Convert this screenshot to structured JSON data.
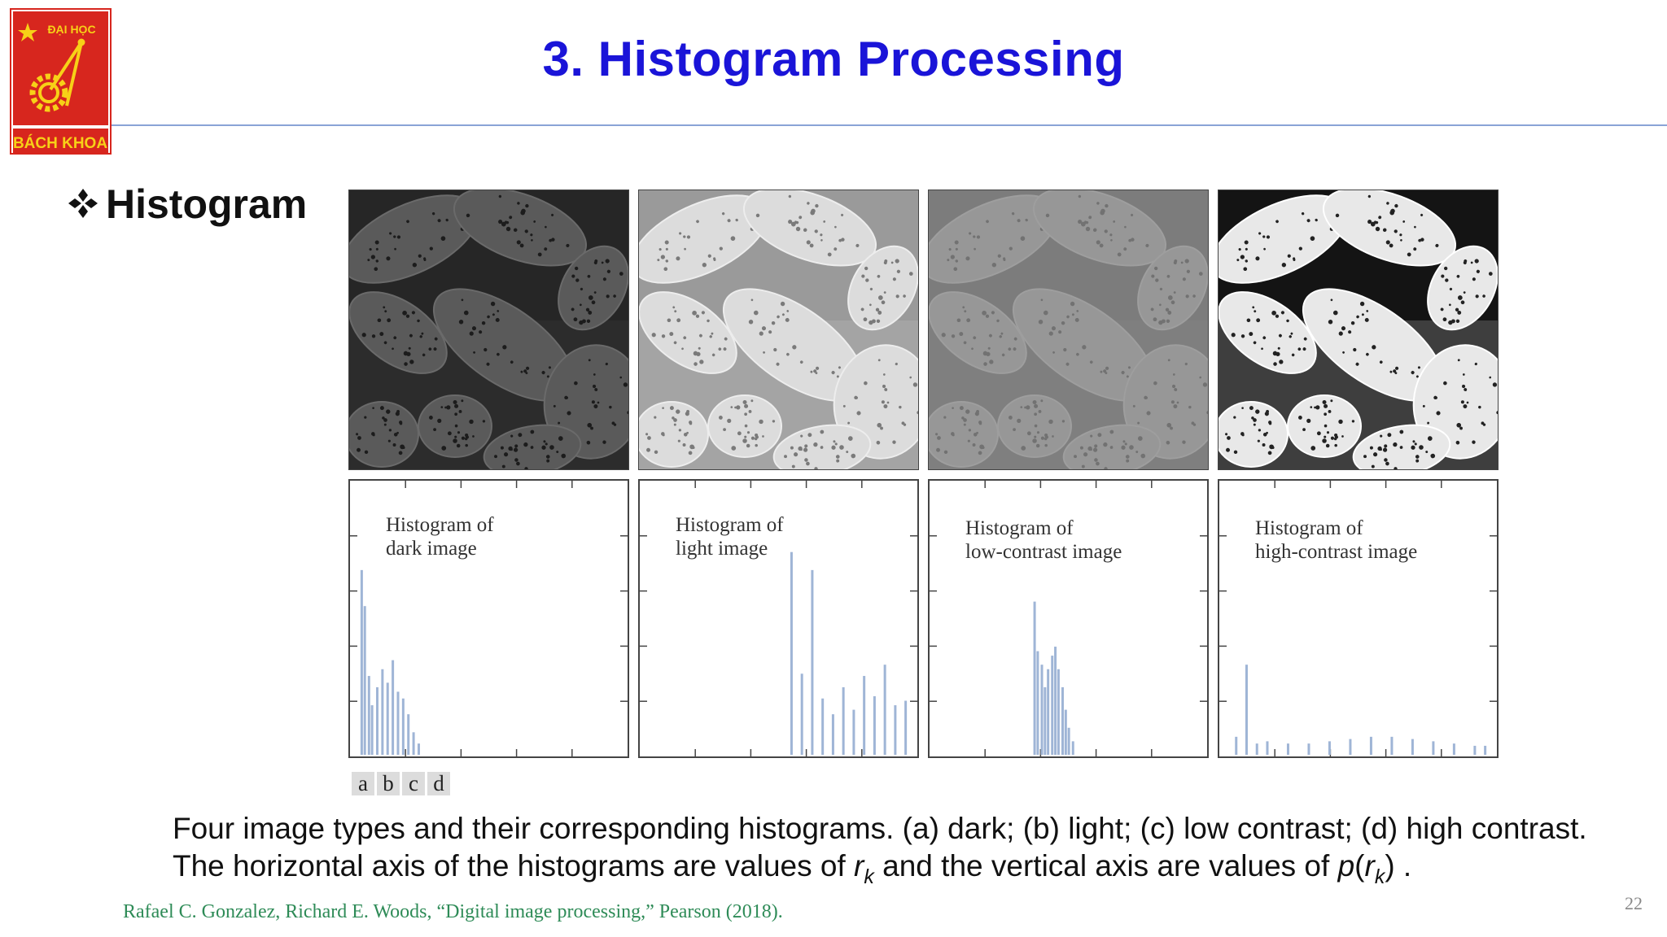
{
  "slide": {
    "title": "3. Histogram Processing",
    "bullet": "Histogram",
    "page_number": "22"
  },
  "logo": {
    "top_text": "ĐẠI HỌC",
    "bottom_text": "BÁCH KHOA",
    "colors": {
      "background": "#d7261e",
      "emblem": "#f7d117",
      "frame": "#d7261e"
    }
  },
  "figure": {
    "photos": [
      {
        "panel": "a",
        "description_tone": "dark",
        "tones": {
          "bg": "#262626",
          "mid": "#3a3a3a",
          "grain": "#5a5a5a",
          "dots": "#1c1c1c",
          "edge": "#6a6a6a"
        }
      },
      {
        "panel": "b",
        "description_tone": "light",
        "tones": {
          "bg": "#9a9a9a",
          "mid": "#b8b8b8",
          "grain": "#dcdcdc",
          "dots": "#7a7a7a",
          "edge": "#ededed"
        }
      },
      {
        "panel": "c",
        "description_tone": "low contrast",
        "tones": {
          "bg": "#7c7c7c",
          "mid": "#888888",
          "grain": "#979797",
          "dots": "#727272",
          "edge": "#9e9e9e"
        }
      },
      {
        "panel": "d",
        "description_tone": "high contrast",
        "tones": {
          "bg": "#141414",
          "mid": "#8c8c8c",
          "grain": "#e8e8e8",
          "dots": "#222222",
          "edge": "#ffffff"
        }
      }
    ],
    "histograms": [
      {
        "title_line1": "Histogram of",
        "title_line2": "dark image"
      },
      {
        "title_line1": "Histogram of",
        "title_line2": "light image"
      },
      {
        "title_line1": "Histogram of",
        "title_line2": "low-contrast image"
      },
      {
        "title_line1": "Histogram of",
        "title_line2": "high-contrast image"
      }
    ],
    "panel_letters": [
      "a",
      "b",
      "c",
      "d"
    ],
    "bar_color": "#9fb5d6"
  },
  "chart_data": [
    {
      "type": "bar",
      "title": "Histogram of dark image",
      "x": [
        5,
        8,
        12,
        15,
        20,
        25,
        30,
        35,
        40,
        45,
        50,
        55,
        60
      ],
      "values": [
        0.82,
        0.66,
        0.35,
        0.22,
        0.3,
        0.38,
        0.32,
        0.42,
        0.28,
        0.25,
        0.18,
        0.1,
        0.05
      ],
      "xlim": [
        0,
        255
      ],
      "ylim": [
        0,
        1
      ]
    },
    {
      "type": "bar",
      "title": "Histogram of light image",
      "x": [
        140,
        150,
        160,
        170,
        180,
        190,
        200,
        210,
        220,
        230,
        240,
        250
      ],
      "values": [
        0.9,
        0.36,
        0.82,
        0.25,
        0.18,
        0.3,
        0.2,
        0.35,
        0.26,
        0.4,
        0.22,
        0.24
      ],
      "xlim": [
        0,
        255
      ],
      "ylim": [
        0,
        1
      ]
    },
    {
      "type": "bar",
      "title": "Histogram of low-contrast image",
      "x": [
        95,
        98,
        102,
        105,
        108,
        112,
        115,
        118,
        122,
        125,
        128,
        132
      ],
      "values": [
        0.68,
        0.46,
        0.4,
        0.3,
        0.38,
        0.44,
        0.48,
        0.38,
        0.3,
        0.2,
        0.12,
        0.06
      ],
      "xlim": [
        0,
        255
      ],
      "ylim": [
        0,
        1
      ]
    },
    {
      "type": "bar",
      "title": "Histogram of high-contrast image",
      "x": [
        10,
        20,
        30,
        40,
        60,
        80,
        100,
        120,
        140,
        160,
        180,
        200,
        220,
        240,
        250
      ],
      "values": [
        0.08,
        0.4,
        0.05,
        0.06,
        0.05,
        0.05,
        0.06,
        0.07,
        0.08,
        0.08,
        0.07,
        0.06,
        0.05,
        0.04,
        0.04
      ],
      "xlim": [
        0,
        255
      ],
      "ylim": [
        0,
        1
      ]
    }
  ],
  "caption": {
    "line1": "Four image types and their corresponding histograms. (a) dark; (b) light; (c) low contrast; (d) high contrast.",
    "line2_pre": "The horizontal axis of the histograms are values of",
    "r_symbol": "r",
    "k_sub": "k",
    "line2_mid": "and the vertical axis are values of",
    "p_symbol": "p",
    "paren_open": "(",
    "paren_close": ")",
    "line2_end": "."
  },
  "reference": "Rafael C. Gonzalez, Richard E. Woods, “Digital image processing,” Pearson (2018)."
}
